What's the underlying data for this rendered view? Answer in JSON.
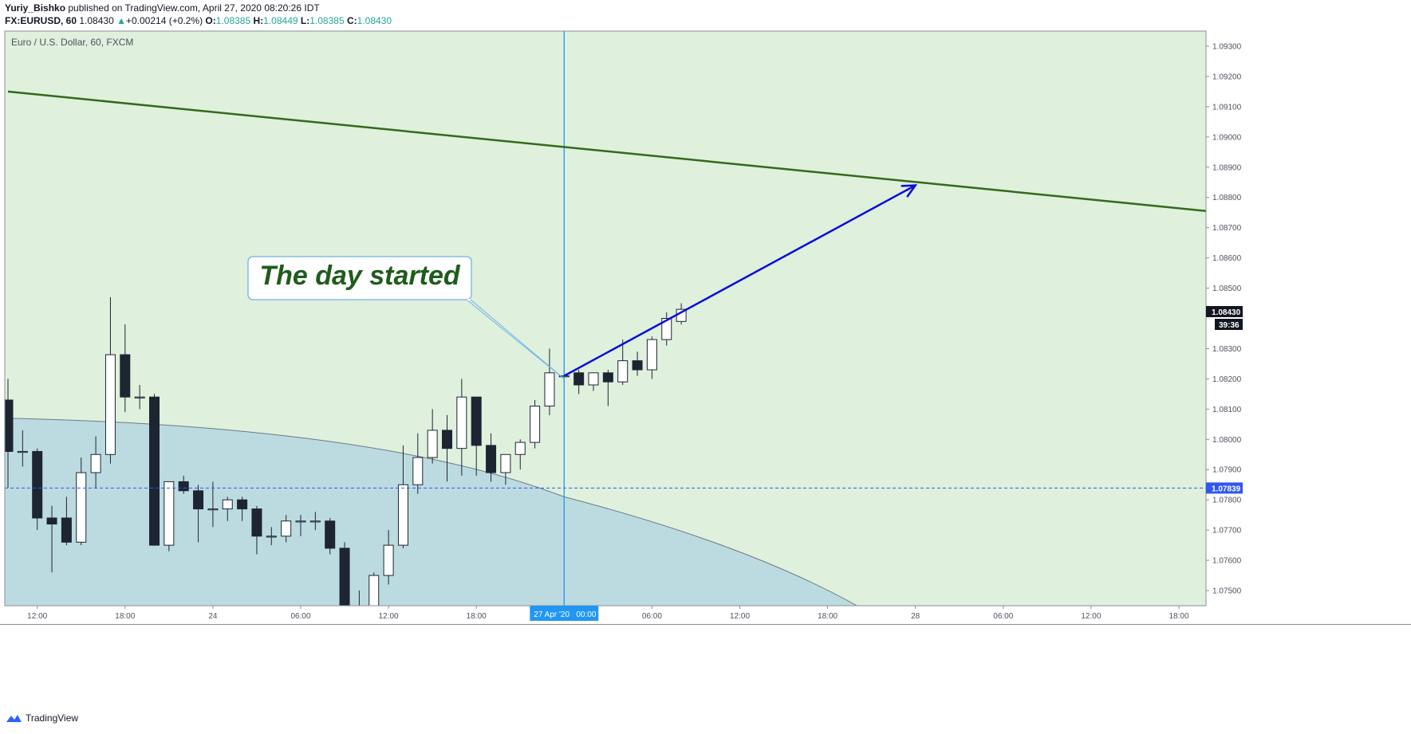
{
  "header": {
    "author": "Yuriy_Bishko",
    "published_text": "published on TradingView.com, April 27, 2020 08:20:26 IDT",
    "symbol": "FX:EURUSD, 60",
    "last": "1.08430",
    "change_arrow": "▲",
    "change": "+0.00214 (+0.2%)",
    "o_label": "O:",
    "o_val": "1.08385",
    "h_label": "H:",
    "h_val": "1.08449",
    "l_label": "L:",
    "l_val": "1.08385",
    "c_label": "C:",
    "c_val": "1.08430"
  },
  "chart_title": "Euro / U.S. Dollar, 60, FXCM",
  "annotation": "The day started",
  "price_tag": "1.08430",
  "countdown": "39:36",
  "hline_tag": "1.07839",
  "time_tag": "27 Apr '20   00:00",
  "footer_brand": "TradingView",
  "colors": {
    "background": "#dff0dd",
    "trendline": "#33691e",
    "arrow": "#0d0ddb",
    "arc_fill": "#bcdbe0",
    "arc_stroke": "#6a7a88",
    "vline": "#2196f3",
    "hline": "#3056f0",
    "bull": "#ffffff",
    "bear": "#1d2533"
  },
  "chart_data": {
    "type": "candlestick",
    "symbol": "EURUSD",
    "timeframe": "60",
    "y_ticks": [
      1.093,
      1.092,
      1.091,
      1.09,
      1.089,
      1.088,
      1.087,
      1.086,
      1.085,
      1.083,
      1.082,
      1.081,
      1.08,
      1.079,
      1.078,
      1.077,
      1.076,
      1.075
    ],
    "ylim": [
      1.0745,
      1.0935
    ],
    "x_labels": [
      {
        "label": "12:00",
        "bar": 2
      },
      {
        "label": "18:00",
        "bar": 8
      },
      {
        "label": "24",
        "bar": 14
      },
      {
        "label": "06:00",
        "bar": 20
      },
      {
        "label": "12:00",
        "bar": 26
      },
      {
        "label": "18:00",
        "bar": 32
      },
      {
        "label": "06:00",
        "bar": 44
      },
      {
        "label": "12:00",
        "bar": 50
      },
      {
        "label": "18:00",
        "bar": 56
      },
      {
        "label": "28",
        "bar": 62
      },
      {
        "label": "06:00",
        "bar": 68
      },
      {
        "label": "12:00",
        "bar": 74
      },
      {
        "label": "18:00",
        "bar": 80
      }
    ],
    "candles": [
      {
        "o": 1.0813,
        "h": 1.082,
        "l": 1.0784,
        "c": 1.0796
      },
      {
        "o": 1.0796,
        "h": 1.0803,
        "l": 1.0791,
        "c": 1.0796
      },
      {
        "o": 1.0796,
        "h": 1.0797,
        "l": 1.077,
        "c": 1.0774
      },
      {
        "o": 1.0774,
        "h": 1.0778,
        "l": 1.0756,
        "c": 1.0772
      },
      {
        "o": 1.0774,
        "h": 1.0781,
        "l": 1.0765,
        "c": 1.0766
      },
      {
        "o": 1.0766,
        "h": 1.0794,
        "l": 1.0765,
        "c": 1.0789
      },
      {
        "o": 1.0789,
        "h": 1.0801,
        "l": 1.0784,
        "c": 1.0795
      },
      {
        "o": 1.0795,
        "h": 1.0847,
        "l": 1.0792,
        "c": 1.0828
      },
      {
        "o": 1.0828,
        "h": 1.0838,
        "l": 1.0809,
        "c": 1.0814
      },
      {
        "o": 1.0814,
        "h": 1.0818,
        "l": 1.081,
        "c": 1.0814
      },
      {
        "o": 1.0814,
        "h": 1.0815,
        "l": 1.0765,
        "c": 1.0765
      },
      {
        "o": 1.0765,
        "h": 1.0786,
        "l": 1.0763,
        "c": 1.0786
      },
      {
        "o": 1.0786,
        "h": 1.0788,
        "l": 1.0782,
        "c": 1.0783
      },
      {
        "o": 1.0783,
        "h": 1.0785,
        "l": 1.0766,
        "c": 1.0777
      },
      {
        "o": 1.0777,
        "h": 1.0786,
        "l": 1.0771,
        "c": 1.0777
      },
      {
        "o": 1.0777,
        "h": 1.0781,
        "l": 1.0773,
        "c": 1.078
      },
      {
        "o": 1.078,
        "h": 1.0781,
        "l": 1.0773,
        "c": 1.0777
      },
      {
        "o": 1.0777,
        "h": 1.0778,
        "l": 1.0762,
        "c": 1.0768
      },
      {
        "o": 1.0768,
        "h": 1.0771,
        "l": 1.0765,
        "c": 1.0768
      },
      {
        "o": 1.0768,
        "h": 1.0775,
        "l": 1.0766,
        "c": 1.0773
      },
      {
        "o": 1.0773,
        "h": 1.0775,
        "l": 1.0768,
        "c": 1.0773
      },
      {
        "o": 1.0773,
        "h": 1.0776,
        "l": 1.077,
        "c": 1.0773
      },
      {
        "o": 1.0773,
        "h": 1.0774,
        "l": 1.0762,
        "c": 1.0764
      },
      {
        "o": 1.0764,
        "h": 1.0766,
        "l": 1.0745,
        "c": 1.0745
      },
      {
        "o": 1.0745,
        "h": 1.075,
        "l": 1.0745,
        "c": 1.0745
      },
      {
        "o": 1.0745,
        "h": 1.0756,
        "l": 1.0745,
        "c": 1.0755
      },
      {
        "o": 1.0755,
        "h": 1.077,
        "l": 1.0752,
        "c": 1.0765
      },
      {
        "o": 1.0765,
        "h": 1.0798,
        "l": 1.0764,
        "c": 1.0785
      },
      {
        "o": 1.0785,
        "h": 1.0802,
        "l": 1.0782,
        "c": 1.0794
      },
      {
        "o": 1.0794,
        "h": 1.081,
        "l": 1.0792,
        "c": 1.0803
      },
      {
        "o": 1.0803,
        "h": 1.0808,
        "l": 1.0786,
        "c": 1.0797
      },
      {
        "o": 1.0797,
        "h": 1.082,
        "l": 1.0788,
        "c": 1.0814
      },
      {
        "o": 1.0814,
        "h": 1.0814,
        "l": 1.0788,
        "c": 1.0798
      },
      {
        "o": 1.0798,
        "h": 1.0802,
        "l": 1.0786,
        "c": 1.0789
      },
      {
        "o": 1.0789,
        "h": 1.0795,
        "l": 1.0785,
        "c": 1.0795
      },
      {
        "o": 1.0795,
        "h": 1.08,
        "l": 1.079,
        "c": 1.0799
      },
      {
        "o": 1.0799,
        "h": 1.0813,
        "l": 1.0797,
        "c": 1.0811
      },
      {
        "o": 1.0811,
        "h": 1.083,
        "l": 1.0808,
        "c": 1.0822
      },
      {
        "o": 1.0821,
        "h": 1.0823,
        "l": 1.0819,
        "c": 1.0821
      },
      {
        "o": 1.0822,
        "h": 1.0823,
        "l": 1.0815,
        "c": 1.0818
      },
      {
        "o": 1.0818,
        "h": 1.0822,
        "l": 1.0816,
        "c": 1.0822
      },
      {
        "o": 1.0822,
        "h": 1.0823,
        "l": 1.0811,
        "c": 1.0819
      },
      {
        "o": 1.0819,
        "h": 1.0833,
        "l": 1.0818,
        "c": 1.0826
      },
      {
        "o": 1.0826,
        "h": 1.0829,
        "l": 1.0821,
        "c": 1.0823
      },
      {
        "o": 1.0823,
        "h": 1.0834,
        "l": 1.082,
        "c": 1.0833
      },
      {
        "o": 1.0833,
        "h": 1.0842,
        "l": 1.0831,
        "c": 1.084
      },
      {
        "o": 1.0839,
        "h": 1.0845,
        "l": 1.0838,
        "c": 1.0843
      }
    ],
    "trendline": {
      "from": {
        "bar": 0,
        "price": 1.0915
      },
      "to": {
        "bar": 85,
        "price": 1.0874
      }
    },
    "projection_arrow": {
      "from": {
        "bar": 38,
        "price": 1.0821
      },
      "to": {
        "bar": 62,
        "price": 1.0884
      }
    },
    "horizontal_line": 1.07839,
    "vertical_line_bar": 38,
    "shaded_arc": {
      "left_price": 1.0807,
      "cross_bar": 38,
      "cross_price": 1.0781,
      "bottom_bar": 58
    }
  }
}
